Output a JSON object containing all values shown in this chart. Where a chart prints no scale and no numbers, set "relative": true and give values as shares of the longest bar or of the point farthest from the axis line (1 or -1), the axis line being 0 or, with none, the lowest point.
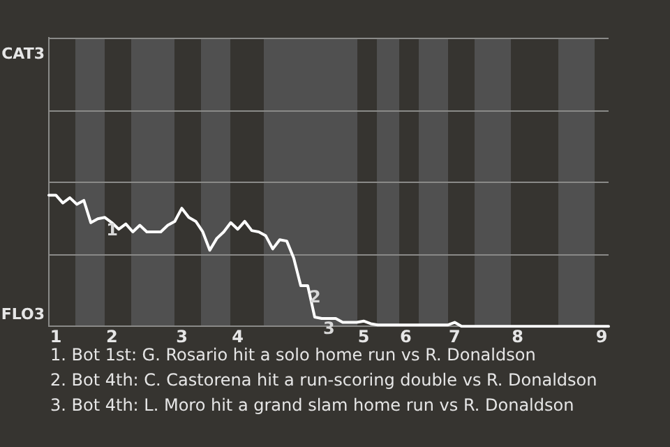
{
  "chart_data": {
    "type": "line",
    "relative": true,
    "categories": [
      null,
      "1",
      null,
      null,
      null,
      null,
      null,
      null,
      null,
      "2",
      null,
      null,
      null,
      null,
      null,
      null,
      null,
      null,
      null,
      "3",
      null,
      null,
      null,
      null,
      null,
      null,
      null,
      "4",
      null,
      null,
      null,
      null,
      null,
      null,
      null,
      null,
      null,
      null,
      null,
      null,
      null,
      null,
      null,
      null,
      null,
      "5",
      null,
      null,
      null,
      null,
      null,
      "6",
      null,
      null,
      null,
      null,
      null,
      null,
      "7",
      null,
      null,
      null,
      null,
      null,
      null,
      null,
      null,
      "8",
      null,
      null,
      null,
      null,
      null,
      null,
      null,
      null,
      null,
      null,
      null,
      "9",
      null
    ],
    "ref_lines": [
      {
        "axis": "y",
        "value": 0.55
      },
      {
        "axis": "y",
        "value": 1.1
      },
      {
        "axis": "y",
        "value": 1.65
      },
      {
        "axis": "y",
        "value": 2.2
      }
    ],
    "legend": false,
    "marker": "none",
    "line_style": "solid",
    "series": [
      {
        "color": "#ffffff",
        "values": [
          1,
          1,
          0.94,
          0.98,
          0.93,
          0.96,
          0.79,
          0.82,
          0.83,
          0.79,
          0.74,
          0.78,
          0.72,
          0.77,
          0.72,
          0.72,
          0.72,
          0.77,
          0.8,
          0.9,
          0.83,
          0.8,
          0.72,
          0.58,
          0.67,
          0.72,
          0.79,
          0.74,
          0.8,
          0.73,
          0.72,
          0.69,
          0.59,
          0.66,
          0.65,
          0.52,
          0.31,
          0.31,
          0.07,
          0.06,
          0.06,
          0.06,
          0.03,
          0.03,
          0.03,
          0.04,
          0.02,
          0.01,
          0.01,
          0.01,
          0.01,
          0.01,
          0.01,
          0.01,
          0.01,
          0.01,
          0.01,
          0.01,
          0.03,
          0,
          0,
          0,
          0,
          0,
          0,
          0,
          0,
          0,
          0,
          0,
          0,
          0,
          0,
          0,
          0,
          0,
          0,
          0,
          0,
          0,
          0
        ]
      }
    ],
    "annotations": [
      "CAT3",
      "FLO3",
      {
        "text": "1",
        "y": 0.82
      },
      {
        "text": "2",
        "y": 0.31
      },
      {
        "text": "3",
        "y": 0.07
      },
      "1. Bot 1st: G. Rosario hit a solo home run vs R. Donaldson",
      "2. Bot 4th: C. Castorena hit a run-scoring double vs R. Donaldson",
      "3. Bot 4th: L. Moro hit a grand slam home run vs R. Donaldson"
    ]
  }
}
